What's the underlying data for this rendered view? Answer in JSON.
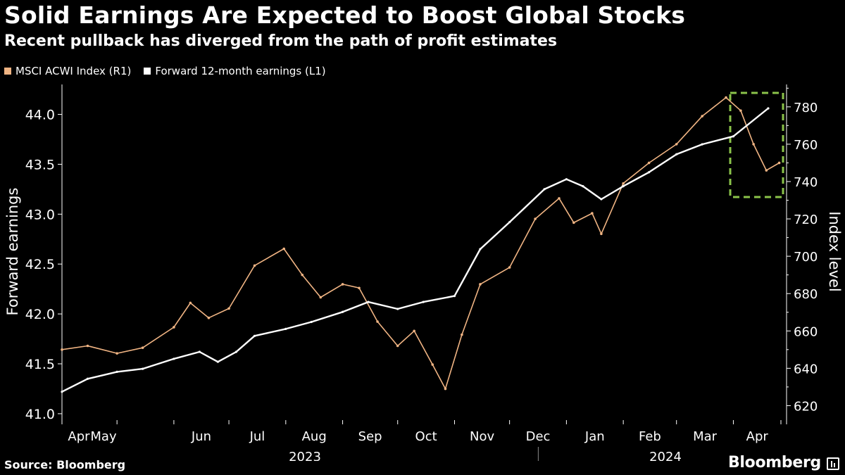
{
  "header": {
    "title": "Solid Earnings Are Expected to Boost Global Stocks",
    "subtitle": "Recent pullback has diverged from the path of profit estimates"
  },
  "legend": {
    "msci_label": "MSCI ACWI Index (R1)",
    "earnings_label": "Forward 12-month earnings (L1)"
  },
  "footer": {
    "source": "Source: Bloomberg",
    "brand": "Bloomberg"
  },
  "colors": {
    "background": "#000000",
    "msci": "#f0b483",
    "earnings": "#ffffff",
    "highlight_box": "#8bc34a",
    "axis": "#ffffff"
  },
  "chart_data": {
    "type": "line",
    "title": "Solid Earnings Are Expected to Boost Global Stocks",
    "left_axis": {
      "label": "Forward earnings",
      "range": [
        40.95,
        44.3
      ],
      "ticks": [
        "41.0",
        "41.5",
        "42.0",
        "42.5",
        "43.0",
        "43.5",
        "44.0"
      ]
    },
    "right_axis": {
      "label": "Index level",
      "range": [
        613,
        792
      ],
      "ticks": [
        "620",
        "640",
        "660",
        "680",
        "700",
        "720",
        "740",
        "760",
        "780"
      ]
    },
    "x_axis": {
      "months": [
        "Apr",
        "May",
        "Jun",
        "Jul",
        "Aug",
        "Sep",
        "Oct",
        "Nov",
        "Dec",
        "Jan",
        "Feb",
        "Mar",
        "Apr"
      ],
      "years": [
        "2023",
        "2024"
      ],
      "date_range": [
        "2023-04-01",
        "2024-04-30"
      ]
    },
    "series": [
      {
        "name": "Forward 12-month earnings (L1)",
        "axis": "left",
        "points": [
          [
            "2023-04-01",
            41.22
          ],
          [
            "2023-04-15",
            41.35
          ],
          [
            "2023-05-01",
            41.42
          ],
          [
            "2023-05-15",
            41.45
          ],
          [
            "2023-06-01",
            41.55
          ],
          [
            "2023-06-15",
            41.62
          ],
          [
            "2023-06-25",
            41.52
          ],
          [
            "2023-07-05",
            41.62
          ],
          [
            "2023-07-15",
            41.78
          ],
          [
            "2023-08-01",
            41.85
          ],
          [
            "2023-08-15",
            41.92
          ],
          [
            "2023-09-01",
            42.02
          ],
          [
            "2023-09-15",
            42.12
          ],
          [
            "2023-10-01",
            42.05
          ],
          [
            "2023-10-15",
            42.12
          ],
          [
            "2023-11-01",
            42.18
          ],
          [
            "2023-11-15",
            42.65
          ],
          [
            "2023-12-01",
            42.92
          ],
          [
            "2023-12-20",
            43.25
          ],
          [
            "2024-01-01",
            43.35
          ],
          [
            "2024-01-10",
            43.28
          ],
          [
            "2024-01-20",
            43.15
          ],
          [
            "2024-02-01",
            43.28
          ],
          [
            "2024-02-15",
            43.42
          ],
          [
            "2024-03-01",
            43.6
          ],
          [
            "2024-03-15",
            43.7
          ],
          [
            "2024-04-01",
            43.78
          ],
          [
            "2024-04-20",
            44.06
          ]
        ]
      },
      {
        "name": "MSCI ACWI Index (R1)",
        "axis": "right",
        "points": [
          [
            "2023-04-01",
            650
          ],
          [
            "2023-04-15",
            652
          ],
          [
            "2023-05-01",
            648
          ],
          [
            "2023-05-15",
            651
          ],
          [
            "2023-06-01",
            662
          ],
          [
            "2023-06-10",
            675
          ],
          [
            "2023-06-20",
            667
          ],
          [
            "2023-07-01",
            672
          ],
          [
            "2023-07-15",
            695
          ],
          [
            "2023-07-31",
            704
          ],
          [
            "2023-08-10",
            690
          ],
          [
            "2023-08-20",
            678
          ],
          [
            "2023-09-01",
            685
          ],
          [
            "2023-09-10",
            683
          ],
          [
            "2023-09-20",
            665
          ],
          [
            "2023-10-01",
            652
          ],
          [
            "2023-10-10",
            660
          ],
          [
            "2023-10-20",
            642
          ],
          [
            "2023-10-27",
            629
          ],
          [
            "2023-11-05",
            658
          ],
          [
            "2023-11-15",
            685
          ],
          [
            "2023-12-01",
            694
          ],
          [
            "2023-12-15",
            720
          ],
          [
            "2023-12-28",
            731
          ],
          [
            "2024-01-05",
            718
          ],
          [
            "2024-01-15",
            723
          ],
          [
            "2024-01-20",
            712
          ],
          [
            "2024-02-01",
            739
          ],
          [
            "2024-02-15",
            750
          ],
          [
            "2024-03-01",
            760
          ],
          [
            "2024-03-15",
            775
          ],
          [
            "2024-03-28",
            785
          ],
          [
            "2024-04-05",
            778
          ],
          [
            "2024-04-12",
            760
          ],
          [
            "2024-04-19",
            746
          ],
          [
            "2024-04-26",
            750
          ]
        ]
      }
    ],
    "annotation": "dashed box highlighting April 2024 divergence"
  }
}
